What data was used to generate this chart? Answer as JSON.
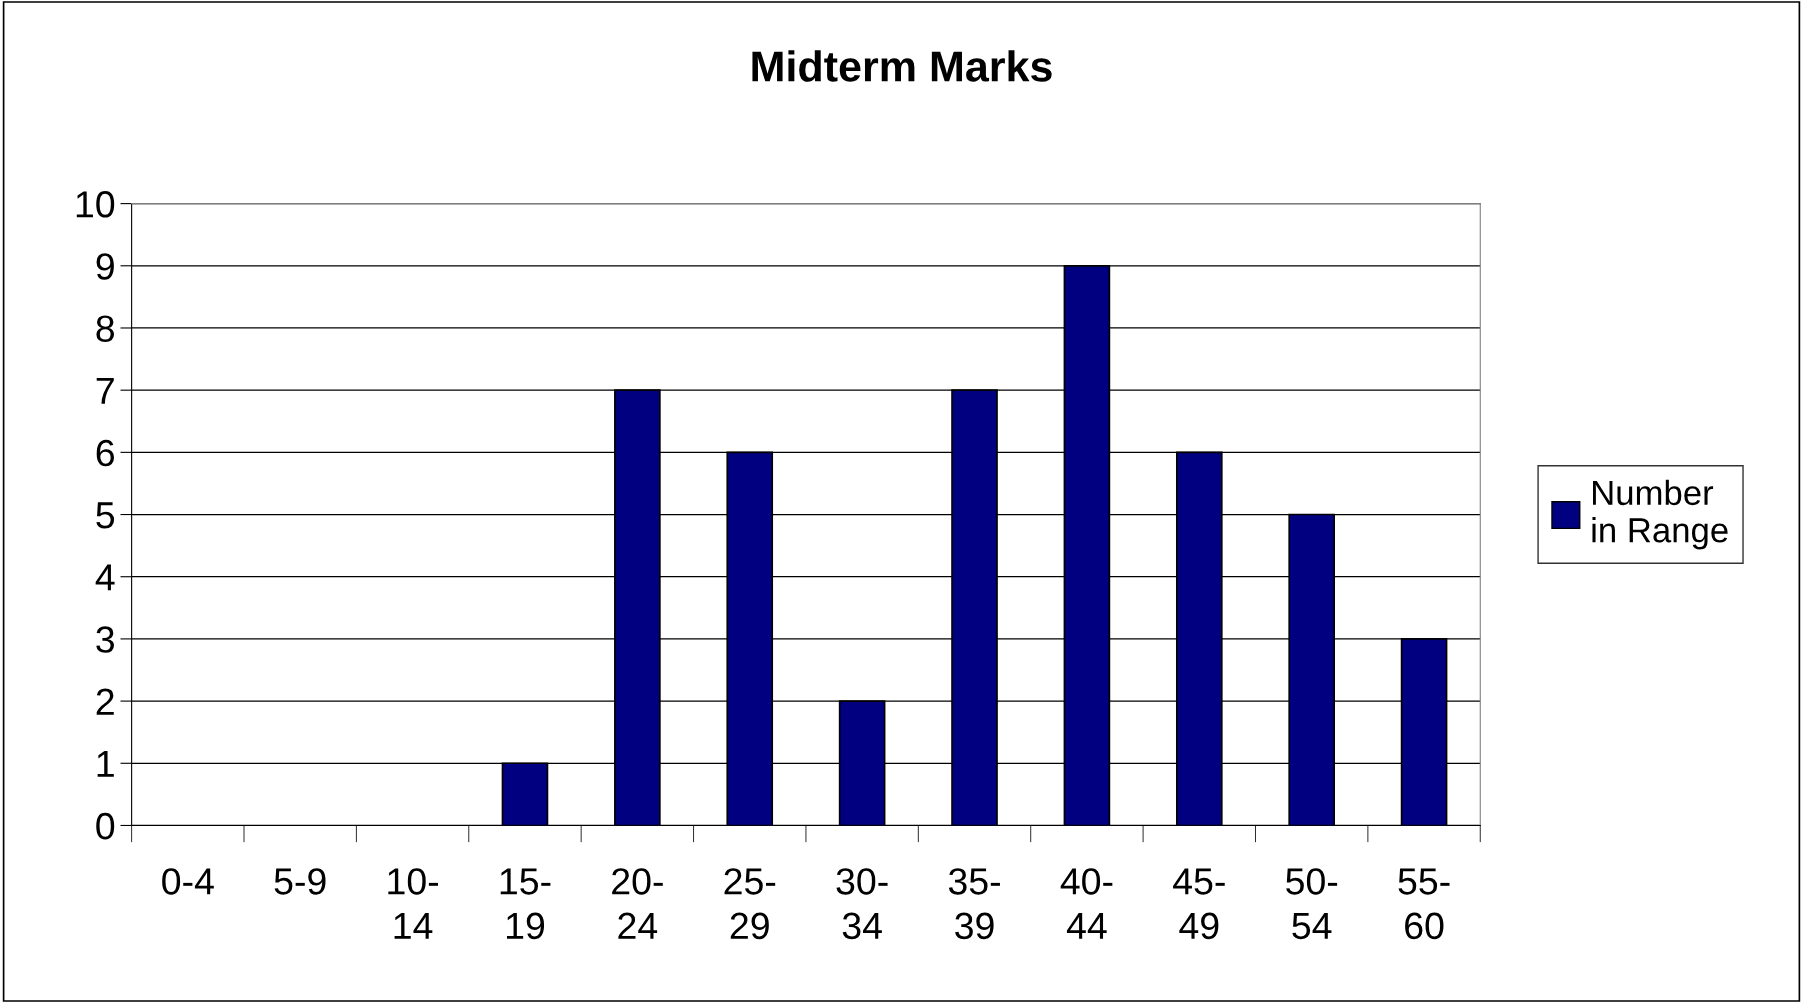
{
  "chart_data": {
    "type": "bar",
    "title": "Midterm Marks",
    "categories": [
      "0-4",
      "5-9",
      "10-14",
      "15-19",
      "20-24",
      "25-29",
      "30-34",
      "35-39",
      "40-44",
      "45-49",
      "50-54",
      "55-60"
    ],
    "series": [
      {
        "name": "Number in Range",
        "color": "#000080",
        "values": [
          0,
          0,
          0,
          1,
          7,
          6,
          2,
          7,
          9,
          6,
          5,
          3
        ]
      }
    ],
    "ylim": [
      0,
      10
    ],
    "yticks": [
      0,
      1,
      2,
      3,
      4,
      5,
      6,
      7,
      8,
      9,
      10
    ],
    "grid": "y",
    "legend": "right"
  }
}
